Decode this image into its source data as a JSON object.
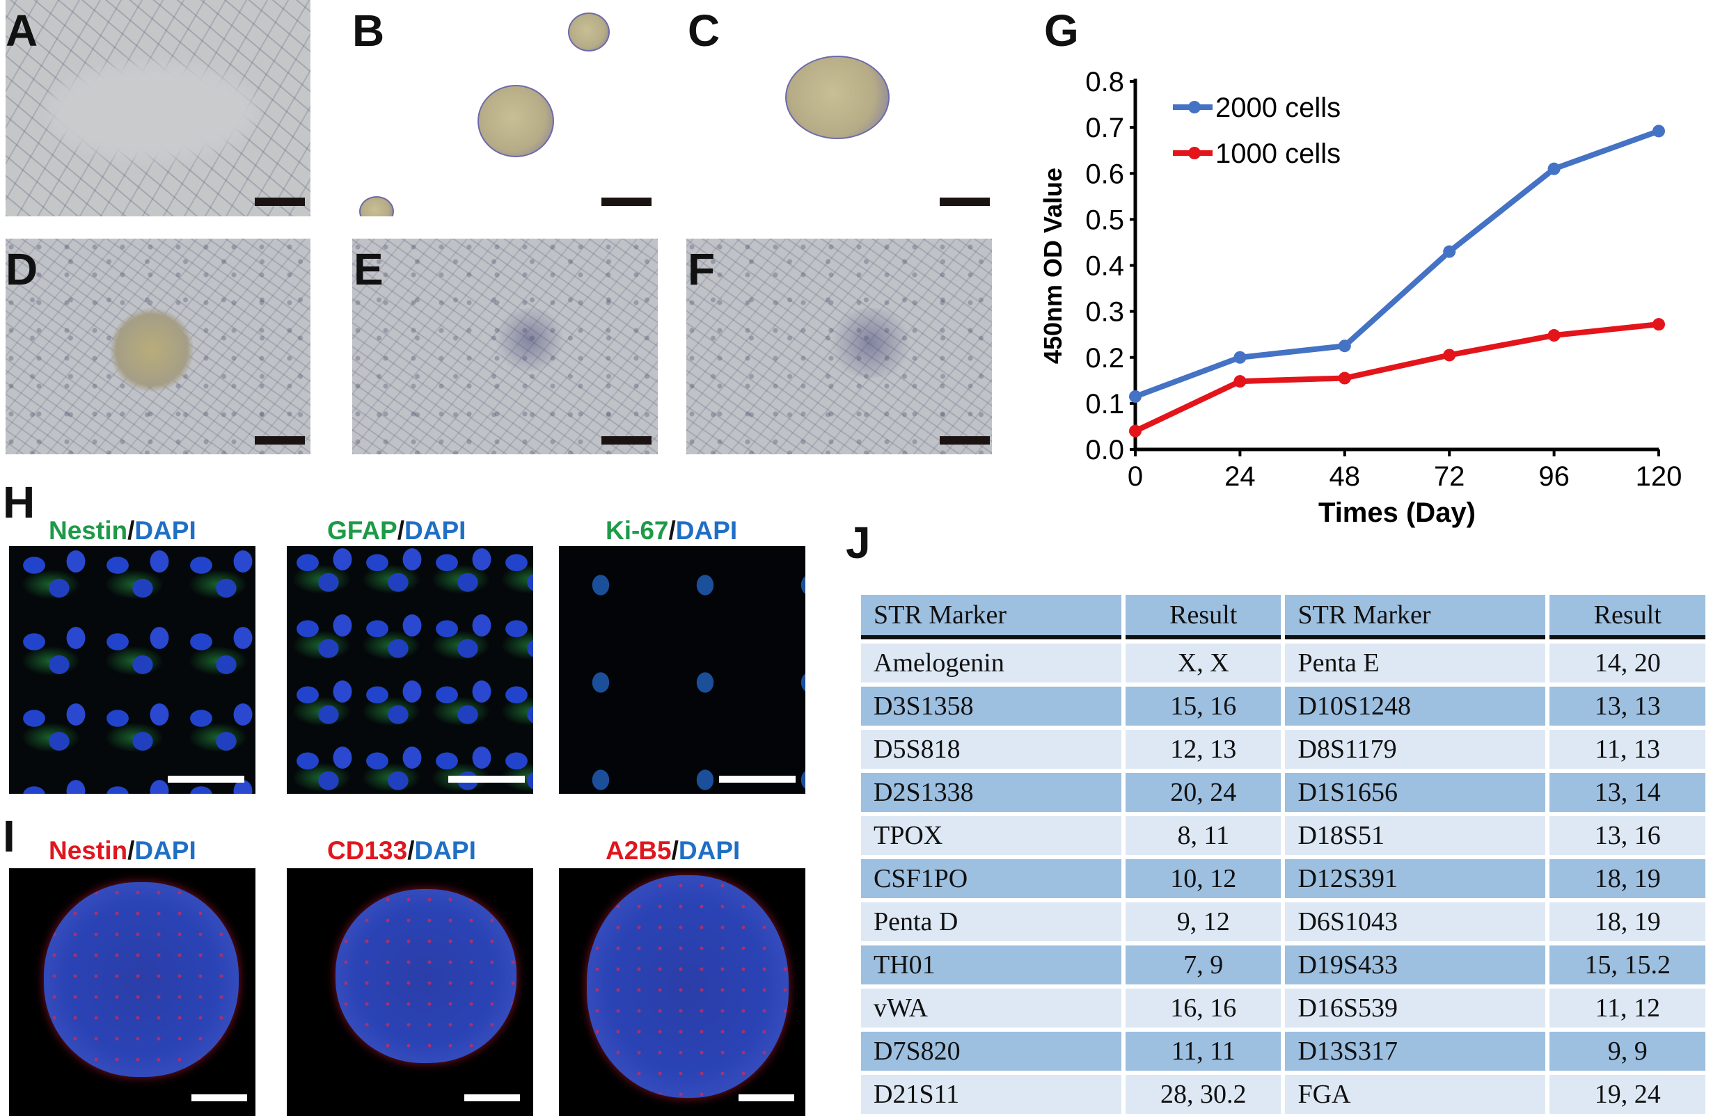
{
  "panel_labels": {
    "A": "A",
    "B": "B",
    "C": "C",
    "D": "D",
    "E": "E",
    "F": "F",
    "G": "G",
    "H": "H",
    "I": "I",
    "J": "J"
  },
  "panel_h": {
    "titles": [
      {
        "marker": "Nestin",
        "sep": "/",
        "stain": "DAPI"
      },
      {
        "marker": "GFAP",
        "sep": "/",
        "stain": "DAPI"
      },
      {
        "marker": "Ki-67",
        "sep": "/",
        "stain": "DAPI"
      }
    ]
  },
  "panel_i": {
    "titles": [
      {
        "marker": "Nestin",
        "sep": "/",
        "stain": "DAPI"
      },
      {
        "marker": "CD133",
        "sep": "/",
        "stain": "DAPI"
      },
      {
        "marker": "A2B5",
        "sep": "/",
        "stain": "DAPI"
      }
    ]
  },
  "chart_data": {
    "type": "line",
    "title": "",
    "xlabel": "Times (Day)",
    "ylabel": "450nm OD Value",
    "x": [
      0,
      24,
      48,
      72,
      96,
      120
    ],
    "xticks": [
      "0",
      "24",
      "48",
      "72",
      "96",
      "120"
    ],
    "yticks": [
      "0.0",
      "0.1",
      "0.2",
      "0.3",
      "0.4",
      "0.5",
      "0.6",
      "0.7",
      "0.8"
    ],
    "ylim": [
      0,
      0.8
    ],
    "xlim": [
      0,
      120
    ],
    "grid": false,
    "legend_position": "top-left",
    "series": [
      {
        "name": "2000 cells",
        "color": "#4472c4",
        "values": [
          0.115,
          0.2,
          0.225,
          0.43,
          0.61,
          0.692
        ]
      },
      {
        "name": "1000 cells",
        "color": "#e3151a",
        "values": [
          0.04,
          0.148,
          0.155,
          0.205,
          0.248,
          0.272
        ]
      }
    ]
  },
  "str_table": {
    "headers": [
      "STR Marker",
      "Result",
      "STR Marker",
      "Result"
    ],
    "rows": [
      [
        "Amelogenin",
        "X, X",
        "Penta E",
        "14, 20"
      ],
      [
        "D3S1358",
        "15, 16",
        "D10S1248",
        "13, 13"
      ],
      [
        "D5S818",
        "12, 13",
        "D8S1179",
        "11, 13"
      ],
      [
        "D2S1338",
        "20, 24",
        "D1S1656",
        "13, 14"
      ],
      [
        "TPOX",
        "8, 11",
        "D18S51",
        "13, 16"
      ],
      [
        "CSF1PO",
        "10, 12",
        "D12S391",
        "18, 19"
      ],
      [
        "Penta D",
        "9, 12",
        "D6S1043",
        "18, 19"
      ],
      [
        "TH01",
        "7, 9",
        "D19S433",
        "15, 15.2"
      ],
      [
        "vWA",
        "16, 16",
        "D16S539",
        "11, 12"
      ],
      [
        "D7S820",
        "11, 11",
        "D13S317",
        "9, 9"
      ],
      [
        "D21S11",
        "28, 30.2",
        "FGA",
        "19, 24"
      ]
    ]
  }
}
